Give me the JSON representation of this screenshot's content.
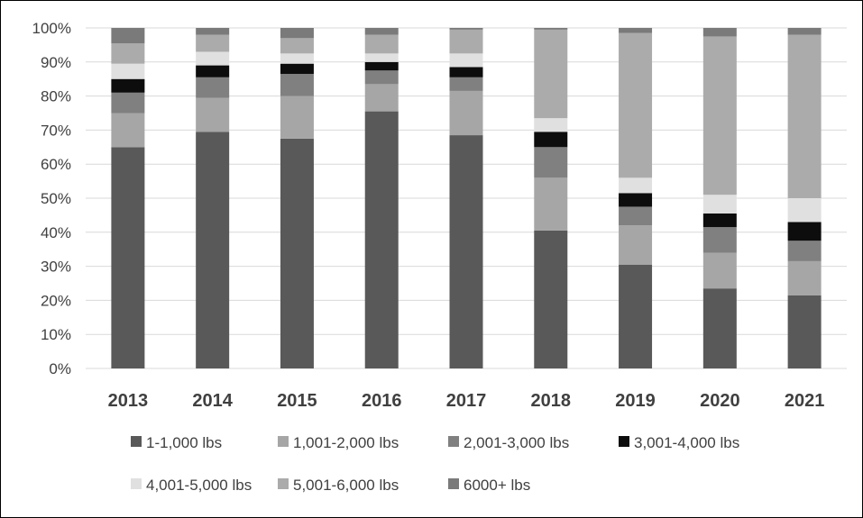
{
  "chart_data": {
    "type": "bar",
    "stacked": true,
    "percent_stacked": true,
    "categories": [
      "2013",
      "2014",
      "2015",
      "2016",
      "2017",
      "2018",
      "2019",
      "2020",
      "2021"
    ],
    "series": [
      {
        "name": "1-1,000 lbs",
        "color": "#595959",
        "values": [
          65,
          69.5,
          67.5,
          75.5,
          68.5,
          40.5,
          30.5,
          23.5,
          21.5
        ]
      },
      {
        "name": "1,001-2,000 lbs",
        "color": "#a6a6a6",
        "values": [
          10,
          10,
          12.5,
          8,
          13,
          15.5,
          11.5,
          10.5,
          10
        ]
      },
      {
        "name": "2,001-3,000 lbs",
        "color": "#808080",
        "values": [
          6,
          6,
          6.5,
          4,
          4,
          9,
          5.5,
          7.5,
          6
        ]
      },
      {
        "name": "3,001-4,000 lbs",
        "color": "#0d0d0d",
        "values": [
          4,
          3.5,
          3,
          2.5,
          3,
          4.5,
          4,
          4,
          5.5
        ]
      },
      {
        "name": "4,001-5,000 lbs",
        "color": "#e0e0e0",
        "values": [
          4.5,
          4,
          3,
          2.5,
          4,
          4,
          4.5,
          5.5,
          7
        ]
      },
      {
        "name": "5,001-6,000 lbs",
        "color": "#ababab",
        "values": [
          6,
          5,
          4.5,
          5.5,
          7,
          26,
          42.5,
          46.5,
          48
        ]
      },
      {
        "name": "6000+ lbs",
        "color": "#7a7a7a",
        "values": [
          4.5,
          2,
          3,
          2,
          0.5,
          0.5,
          1.5,
          2.5,
          2
        ]
      }
    ],
    "ylim": [
      0,
      100
    ],
    "yticks": [
      "0%",
      "10%",
      "20%",
      "30%",
      "40%",
      "50%",
      "60%",
      "70%",
      "80%",
      "90%",
      "100%"
    ],
    "grid": true,
    "legend_position": "bottom",
    "title": "",
    "xlabel": "",
    "ylabel": ""
  }
}
